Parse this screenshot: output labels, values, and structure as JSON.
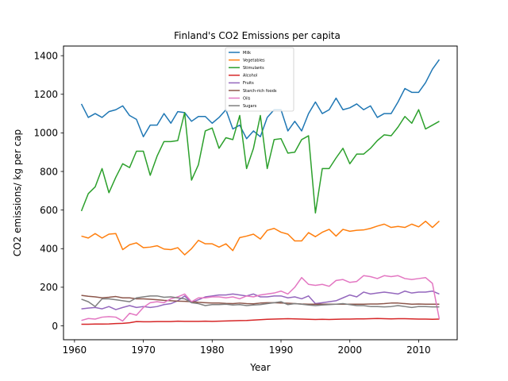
{
  "chart_data": {
    "type": "line",
    "title": "Finland's CO2 Emissions per capita",
    "xlabel": "Year",
    "ylabel": "CO2 emissions/ kg per cap",
    "xlim": [
      1958.4,
      2015.6
    ],
    "ylim": [
      -72,
      1450
    ],
    "x_ticks": [
      1960,
      1970,
      1980,
      1990,
      2000,
      2010
    ],
    "y_ticks": [
      0,
      200,
      400,
      600,
      800,
      1000,
      1200,
      1400
    ],
    "grid": false,
    "legend_position": "top-center",
    "x": [
      1961,
      1962,
      1963,
      1964,
      1965,
      1966,
      1967,
      1968,
      1969,
      1970,
      1971,
      1972,
      1973,
      1974,
      1975,
      1976,
      1977,
      1978,
      1979,
      1980,
      1981,
      1982,
      1983,
      1984,
      1985,
      1986,
      1987,
      1988,
      1989,
      1990,
      1991,
      1992,
      1993,
      1994,
      1995,
      1996,
      1997,
      1998,
      1999,
      2000,
      2001,
      2002,
      2003,
      2004,
      2005,
      2006,
      2007,
      2008,
      2009,
      2010,
      2011,
      2012,
      2013
    ],
    "series": [
      {
        "name": "Milk",
        "color": "#1f77b4",
        "values": [
          1150,
          1080,
          1100,
          1080,
          1110,
          1120,
          1140,
          1090,
          1070,
          980,
          1040,
          1040,
          1100,
          1050,
          1110,
          1105,
          1060,
          1085,
          1085,
          1050,
          1080,
          1120,
          1020,
          1040,
          970,
          1010,
          980,
          1080,
          1120,
          1120,
          1010,
          1060,
          1010,
          1100,
          1160,
          1100,
          1120,
          1180,
          1120,
          1130,
          1150,
          1120,
          1140,
          1080,
          1100,
          1100,
          1160,
          1230,
          1210,
          1210,
          1260,
          1330,
          1380
        ]
      },
      {
        "name": "Vegetables",
        "color": "#ff7f0e",
        "values": [
          465,
          455,
          478,
          455,
          475,
          478,
          395,
          420,
          430,
          405,
          408,
          415,
          398,
          395,
          405,
          368,
          400,
          443,
          425,
          425,
          408,
          425,
          390,
          457,
          465,
          475,
          450,
          495,
          505,
          485,
          475,
          440,
          440,
          483,
          462,
          485,
          500,
          465,
          500,
          490,
          495,
          497,
          505,
          517,
          527,
          510,
          515,
          510,
          527,
          513,
          542,
          510,
          543
        ]
      },
      {
        "name": "Stimulants",
        "color": "#2ca02c",
        "values": [
          595,
          685,
          720,
          815,
          690,
          770,
          840,
          820,
          905,
          905,
          780,
          880,
          955,
          955,
          960,
          1105,
          755,
          835,
          1010,
          1025,
          920,
          975,
          965,
          1090,
          815,
          920,
          1090,
          815,
          965,
          970,
          895,
          900,
          965,
          985,
          585,
          815,
          815,
          870,
          920,
          840,
          890,
          890,
          920,
          960,
          990,
          985,
          1030,
          1085,
          1050,
          1120,
          1020,
          1040,
          1060
        ]
      },
      {
        "name": "Alcohol",
        "color": "#d62728",
        "values": [
          8,
          8,
          9,
          9,
          10,
          12,
          13,
          16,
          22,
          21,
          21,
          22,
          22,
          22,
          24,
          23,
          23,
          23,
          24,
          23,
          24,
          25,
          26,
          27,
          28,
          30,
          32,
          34,
          35,
          36,
          37,
          36,
          35,
          34,
          33,
          34,
          33,
          34,
          35,
          35,
          36,
          36,
          37,
          38,
          37,
          36,
          37,
          37,
          36,
          35,
          35,
          34,
          35
        ]
      },
      {
        "name": "Fruits",
        "color": "#9467bd",
        "values": [
          88,
          92,
          95,
          88,
          100,
          84,
          95,
          105,
          95,
          100,
          95,
          100,
          110,
          115,
          130,
          155,
          120,
          135,
          150,
          155,
          160,
          160,
          165,
          160,
          155,
          165,
          150,
          150,
          155,
          155,
          145,
          150,
          140,
          155,
          115,
          120,
          125,
          130,
          145,
          160,
          150,
          175,
          165,
          170,
          175,
          170,
          165,
          180,
          170,
          175,
          175,
          180,
          165
        ]
      },
      {
        "name": "Starch-rich foods",
        "color": "#8c564b",
        "values": [
          158,
          153,
          150,
          145,
          148,
          152,
          145,
          145,
          140,
          140,
          138,
          135,
          132,
          130,
          128,
          127,
          125,
          122,
          120,
          118,
          118,
          116,
          115,
          118,
          115,
          114,
          118,
          120,
          120,
          118,
          117,
          115,
          113,
          112,
          112,
          112,
          112,
          112,
          112,
          112,
          112,
          112,
          113,
          113,
          115,
          118,
          118,
          115,
          112,
          113,
          112,
          112,
          112
        ]
      },
      {
        "name": "Oils",
        "color": "#e377c2",
        "values": [
          28,
          38,
          35,
          45,
          48,
          45,
          25,
          65,
          55,
          95,
          120,
          125,
          120,
          140,
          150,
          165,
          125,
          145,
          145,
          150,
          150,
          145,
          150,
          140,
          155,
          150,
          160,
          165,
          170,
          180,
          165,
          200,
          250,
          215,
          210,
          215,
          205,
          235,
          240,
          225,
          230,
          260,
          255,
          245,
          260,
          255,
          260,
          245,
          240,
          245,
          250,
          220,
          35
        ]
      },
      {
        "name": "Sugars",
        "color": "#7f7f7f",
        "values": [
          138,
          125,
          100,
          140,
          140,
          135,
          130,
          125,
          145,
          150,
          155,
          155,
          148,
          150,
          145,
          140,
          120,
          115,
          105,
          110,
          110,
          112,
          108,
          110,
          105,
          108,
          110,
          115,
          120,
          125,
          110,
          115,
          112,
          108,
          105,
          108,
          110,
          112,
          115,
          110,
          105,
          105,
          100,
          100,
          98,
          100,
          105,
          100,
          95,
          100,
          100,
          98,
          98
        ]
      }
    ]
  }
}
